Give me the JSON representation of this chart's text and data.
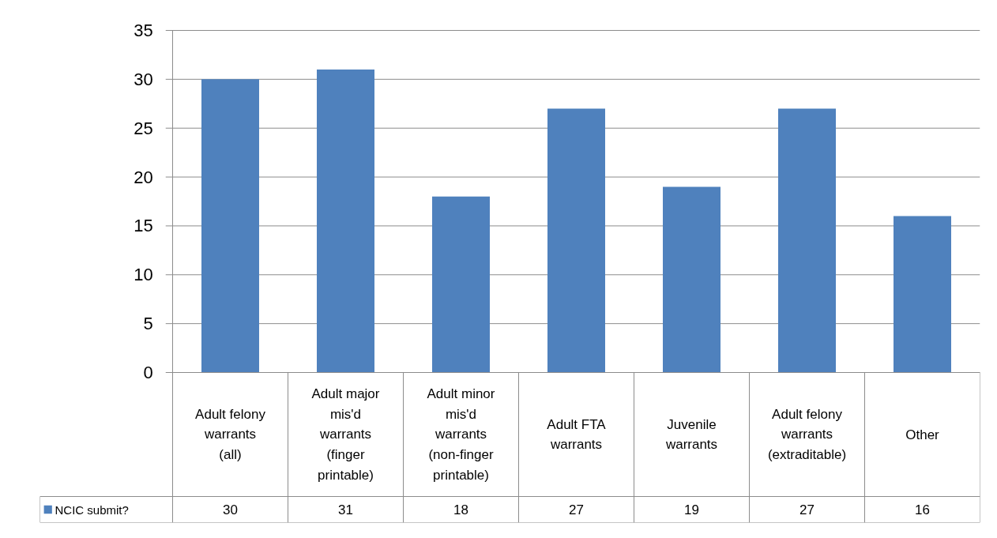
{
  "chart_data": {
    "type": "bar",
    "categories": [
      "Adult felony warrants (all)",
      "Adult major mis'd warrants (finger printable)",
      "Adult minor mis'd warrants (non-finger printable)",
      "Adult FTA warrants",
      "Juvenile warrants",
      "Adult felony warrants (extraditable)",
      "Other"
    ],
    "series": [
      {
        "name": "NCIC submit?",
        "color": "#4f81bd",
        "values": [
          30,
          31,
          18,
          27,
          19,
          27,
          16
        ]
      }
    ],
    "ylim": [
      0,
      35
    ],
    "yticks": [
      0,
      5,
      10,
      15,
      20,
      25,
      30,
      35
    ],
    "grid": "y",
    "legend": "bottom",
    "data_labels": true
  }
}
